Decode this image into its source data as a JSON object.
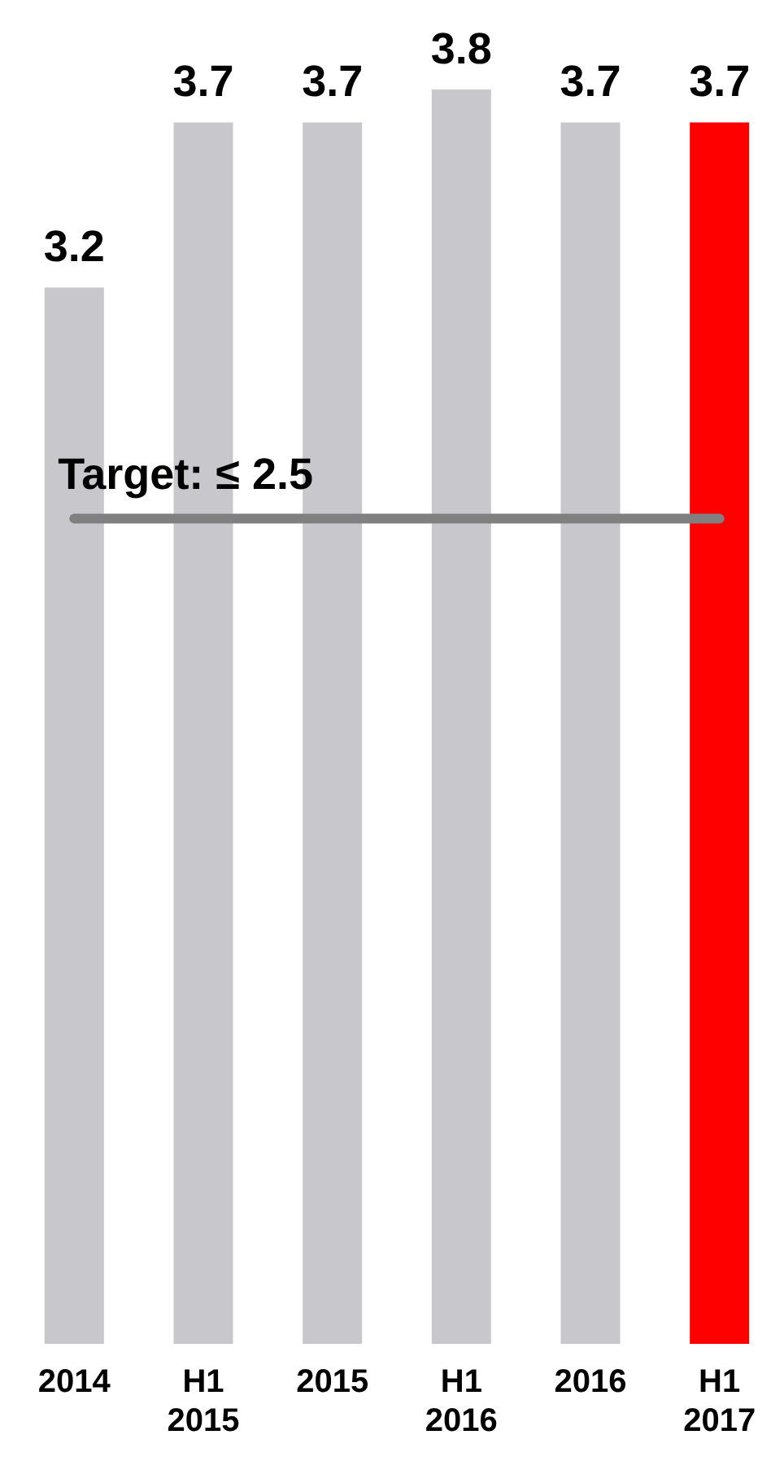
{
  "chart_data": {
    "type": "bar",
    "categories": [
      "2014",
      "H1 2015",
      "2015",
      "H1 2016",
      "2016",
      "H1 2017"
    ],
    "values": [
      3.2,
      3.7,
      3.7,
      3.8,
      3.7,
      3.7
    ],
    "colors": [
      "#c8c7cc",
      "#c8c7cc",
      "#c8c7cc",
      "#c8c7cc",
      "#c8c7cc",
      "#ff0000"
    ],
    "ylim": [
      0,
      3.8
    ],
    "data_labels": true,
    "grid": false,
    "legend": false,
    "tick_labels": "x",
    "ref_lines": [
      {
        "axis": "y",
        "value": 2.5,
        "label": "Target: ≤ 2.5",
        "color": "#808080"
      }
    ]
  }
}
